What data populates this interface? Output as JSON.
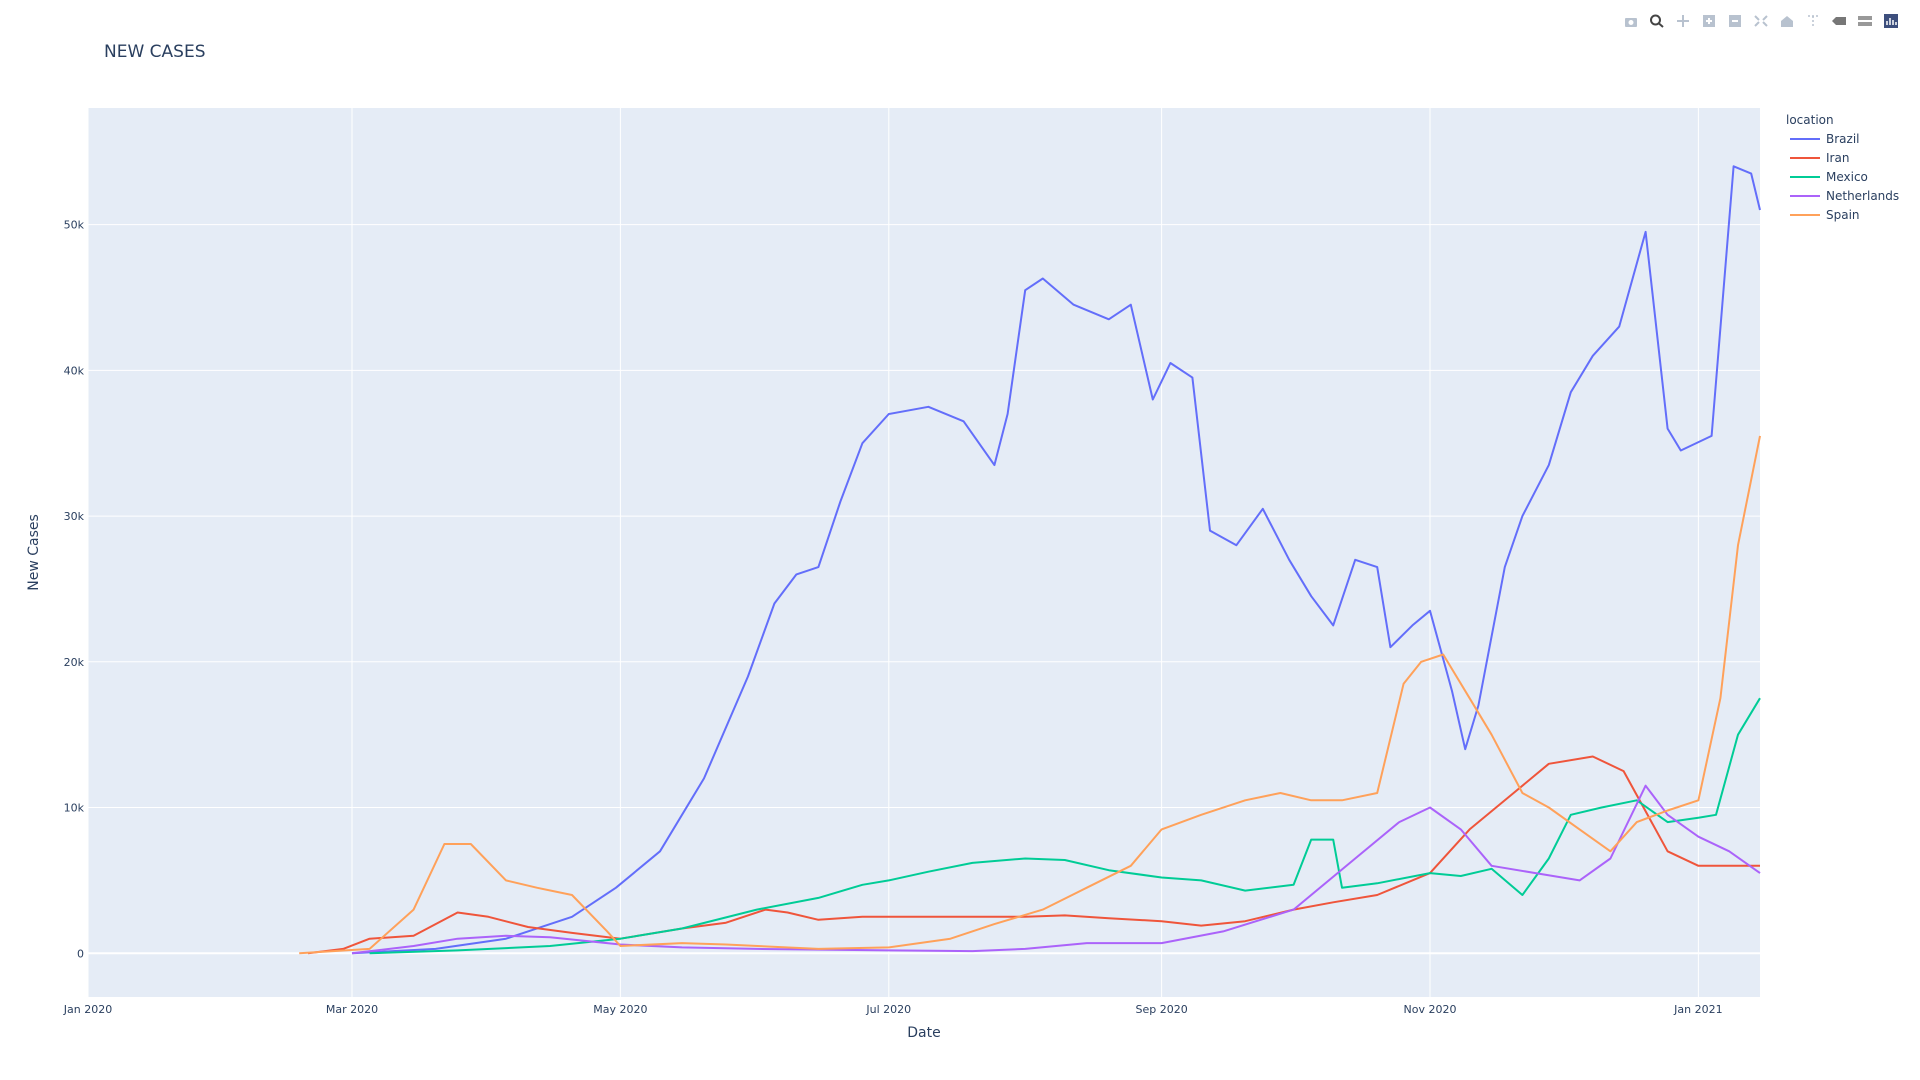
{
  "modebar": {
    "icons": [
      "camera-icon",
      "zoom-icon",
      "pan-icon",
      "zoom-in-icon",
      "zoom-out-icon",
      "autoscale-icon",
      "home-icon",
      "spike-lines-icon",
      "hover-closest-icon",
      "hover-compare-icon",
      "plotly-logo-icon"
    ]
  },
  "chart_data": {
    "type": "line",
    "title": "NEW CASES",
    "xlabel": "Date",
    "ylabel": "New Cases",
    "x_ticks": [
      "Jan 2020",
      "Mar 2020",
      "May 2020",
      "Jul 2020",
      "Sep 2020",
      "Nov 2020",
      "Jan 2021"
    ],
    "y_ticks": [
      "0",
      "10k",
      "20k",
      "30k",
      "40k",
      "50k"
    ],
    "xlim": [
      "2020-01-01",
      "2021-01-15"
    ],
    "ylim": [
      -3000,
      58000
    ],
    "grid": true,
    "legend_title": "location",
    "legend_position": "top-right",
    "colors": {
      "plot_bg": "#e5ecf6",
      "grid": "#ffffff"
    },
    "series": [
      {
        "name": "Brazil",
        "color": "#636efa",
        "points": [
          [
            "2020-03-01",
            0
          ],
          [
            "2020-03-20",
            300
          ],
          [
            "2020-04-05",
            1000
          ],
          [
            "2020-04-20",
            2500
          ],
          [
            "2020-04-30",
            4500
          ],
          [
            "2020-05-10",
            7000
          ],
          [
            "2020-05-20",
            12000
          ],
          [
            "2020-05-30",
            19000
          ],
          [
            "2020-06-05",
            24000
          ],
          [
            "2020-06-10",
            26000
          ],
          [
            "2020-06-15",
            26500
          ],
          [
            "2020-06-20",
            31000
          ],
          [
            "2020-06-25",
            35000
          ],
          [
            "2020-07-01",
            37000
          ],
          [
            "2020-07-10",
            37500
          ],
          [
            "2020-07-18",
            36500
          ],
          [
            "2020-07-25",
            33500
          ],
          [
            "2020-07-28",
            37000
          ],
          [
            "2020-08-01",
            45500
          ],
          [
            "2020-08-05",
            46300
          ],
          [
            "2020-08-12",
            44500
          ],
          [
            "2020-08-20",
            43500
          ],
          [
            "2020-08-25",
            44500
          ],
          [
            "2020-08-30",
            38000
          ],
          [
            "2020-09-03",
            40500
          ],
          [
            "2020-09-08",
            39500
          ],
          [
            "2020-09-12",
            29000
          ],
          [
            "2020-09-18",
            28000
          ],
          [
            "2020-09-24",
            30500
          ],
          [
            "2020-09-30",
            27000
          ],
          [
            "2020-10-05",
            24500
          ],
          [
            "2020-10-10",
            22500
          ],
          [
            "2020-10-15",
            27000
          ],
          [
            "2020-10-20",
            26500
          ],
          [
            "2020-10-23",
            21000
          ],
          [
            "2020-10-28",
            22500
          ],
          [
            "2020-11-01",
            23500
          ],
          [
            "2020-11-06",
            18000
          ],
          [
            "2020-11-09",
            14000
          ],
          [
            "2020-11-12",
            17000
          ],
          [
            "2020-11-18",
            26500
          ],
          [
            "2020-11-22",
            30000
          ],
          [
            "2020-11-28",
            33500
          ],
          [
            "2020-12-03",
            38500
          ],
          [
            "2020-12-08",
            41000
          ],
          [
            "2020-12-14",
            43000
          ],
          [
            "2020-12-20",
            49500
          ],
          [
            "2020-12-25",
            36000
          ],
          [
            "2020-12-28",
            34500
          ],
          [
            "2021-01-04",
            35500
          ],
          [
            "2021-01-09",
            54000
          ],
          [
            "2021-01-13",
            53500
          ],
          [
            "2021-01-15",
            51000
          ]
        ]
      },
      {
        "name": "Iran",
        "color": "#ef553b",
        "points": [
          [
            "2020-02-20",
            0
          ],
          [
            "2020-02-28",
            300
          ],
          [
            "2020-03-05",
            1000
          ],
          [
            "2020-03-15",
            1200
          ],
          [
            "2020-03-25",
            2800
          ],
          [
            "2020-04-01",
            2500
          ],
          [
            "2020-04-10",
            1800
          ],
          [
            "2020-04-20",
            1400
          ],
          [
            "2020-05-01",
            1000
          ],
          [
            "2020-05-15",
            1700
          ],
          [
            "2020-05-25",
            2100
          ],
          [
            "2020-06-03",
            3000
          ],
          [
            "2020-06-08",
            2800
          ],
          [
            "2020-06-15",
            2300
          ],
          [
            "2020-06-25",
            2500
          ],
          [
            "2020-07-15",
            2500
          ],
          [
            "2020-08-01",
            2500
          ],
          [
            "2020-08-10",
            2600
          ],
          [
            "2020-08-20",
            2400
          ],
          [
            "2020-09-01",
            2200
          ],
          [
            "2020-09-10",
            1900
          ],
          [
            "2020-09-20",
            2200
          ],
          [
            "2020-10-01",
            3000
          ],
          [
            "2020-10-10",
            3500
          ],
          [
            "2020-10-20",
            4000
          ],
          [
            "2020-11-01",
            5500
          ],
          [
            "2020-11-10",
            8500
          ],
          [
            "2020-11-20",
            11000
          ],
          [
            "2020-11-28",
            13000
          ],
          [
            "2020-12-08",
            13500
          ],
          [
            "2020-12-15",
            12500
          ],
          [
            "2020-12-25",
            7000
          ],
          [
            "2021-01-01",
            6000
          ],
          [
            "2021-01-15",
            6000
          ]
        ]
      },
      {
        "name": "Mexico",
        "color": "#00cc96",
        "points": [
          [
            "2020-03-05",
            0
          ],
          [
            "2020-03-25",
            200
          ],
          [
            "2020-04-15",
            500
          ],
          [
            "2020-05-01",
            1000
          ],
          [
            "2020-05-15",
            1700
          ],
          [
            "2020-06-01",
            3000
          ],
          [
            "2020-06-15",
            3800
          ],
          [
            "2020-06-25",
            4700
          ],
          [
            "2020-07-01",
            5000
          ],
          [
            "2020-07-10",
            5600
          ],
          [
            "2020-07-20",
            6200
          ],
          [
            "2020-08-01",
            6500
          ],
          [
            "2020-08-10",
            6400
          ],
          [
            "2020-08-20",
            5700
          ],
          [
            "2020-09-01",
            5200
          ],
          [
            "2020-09-10",
            5000
          ],
          [
            "2020-09-20",
            4300
          ],
          [
            "2020-10-01",
            4700
          ],
          [
            "2020-10-05",
            7800
          ],
          [
            "2020-10-10",
            7800
          ],
          [
            "2020-10-12",
            4500
          ],
          [
            "2020-10-20",
            4800
          ],
          [
            "2020-11-01",
            5500
          ],
          [
            "2020-11-08",
            5300
          ],
          [
            "2020-11-15",
            5800
          ],
          [
            "2020-11-22",
            4000
          ],
          [
            "2020-11-28",
            6500
          ],
          [
            "2020-12-03",
            9500
          ],
          [
            "2020-12-10",
            10000
          ],
          [
            "2020-12-18",
            10500
          ],
          [
            "2020-12-25",
            9000
          ],
          [
            "2021-01-01",
            9300
          ],
          [
            "2021-01-05",
            9500
          ],
          [
            "2021-01-10",
            15000
          ],
          [
            "2021-01-15",
            17500
          ]
        ]
      },
      {
        "name": "Netherlands",
        "color": "#ab63fa",
        "points": [
          [
            "2020-03-01",
            0
          ],
          [
            "2020-03-15",
            500
          ],
          [
            "2020-03-25",
            1000
          ],
          [
            "2020-04-05",
            1200
          ],
          [
            "2020-04-15",
            1100
          ],
          [
            "2020-05-01",
            600
          ],
          [
            "2020-05-15",
            400
          ],
          [
            "2020-06-01",
            300
          ],
          [
            "2020-07-01",
            200
          ],
          [
            "2020-07-20",
            150
          ],
          [
            "2020-08-01",
            300
          ],
          [
            "2020-08-15",
            700
          ],
          [
            "2020-09-01",
            700
          ],
          [
            "2020-09-15",
            1500
          ],
          [
            "2020-10-01",
            3000
          ],
          [
            "2020-10-15",
            6500
          ],
          [
            "2020-10-25",
            9000
          ],
          [
            "2020-11-01",
            10000
          ],
          [
            "2020-11-08",
            8500
          ],
          [
            "2020-11-15",
            6000
          ],
          [
            "2020-11-25",
            5500
          ],
          [
            "2020-12-05",
            5000
          ],
          [
            "2020-12-12",
            6500
          ],
          [
            "2020-12-20",
            11500
          ],
          [
            "2020-12-25",
            9500
          ],
          [
            "2021-01-01",
            8000
          ],
          [
            "2021-01-08",
            7000
          ],
          [
            "2021-01-15",
            5500
          ]
        ]
      },
      {
        "name": "Spain",
        "color": "#ffa15a",
        "points": [
          [
            "2020-02-18",
            0
          ],
          [
            "2020-03-05",
            300
          ],
          [
            "2020-03-15",
            3000
          ],
          [
            "2020-03-22",
            7500
          ],
          [
            "2020-03-28",
            7500
          ],
          [
            "2020-04-05",
            5000
          ],
          [
            "2020-04-12",
            4500
          ],
          [
            "2020-04-20",
            4000
          ],
          [
            "2020-04-28",
            1500
          ],
          [
            "2020-05-01",
            500
          ],
          [
            "2020-05-15",
            700
          ],
          [
            "2020-05-25",
            600
          ],
          [
            "2020-06-15",
            300
          ],
          [
            "2020-07-01",
            400
          ],
          [
            "2020-07-15",
            1000
          ],
          [
            "2020-07-25",
            2000
          ],
          [
            "2020-08-05",
            3000
          ],
          [
            "2020-08-15",
            4500
          ],
          [
            "2020-08-25",
            6000
          ],
          [
            "2020-09-01",
            8500
          ],
          [
            "2020-09-10",
            9500
          ],
          [
            "2020-09-20",
            10500
          ],
          [
            "2020-09-28",
            11000
          ],
          [
            "2020-10-05",
            10500
          ],
          [
            "2020-10-12",
            10500
          ],
          [
            "2020-10-20",
            11000
          ],
          [
            "2020-10-26",
            18500
          ],
          [
            "2020-10-30",
            20000
          ],
          [
            "2020-11-04",
            20500
          ],
          [
            "2020-11-10",
            17500
          ],
          [
            "2020-11-15",
            15000
          ],
          [
            "2020-11-22",
            11000
          ],
          [
            "2020-11-28",
            10000
          ],
          [
            "2020-12-05",
            8500
          ],
          [
            "2020-12-12",
            7000
          ],
          [
            "2020-12-18",
            9000
          ],
          [
            "2020-12-25",
            9800
          ],
          [
            "2021-01-01",
            10500
          ],
          [
            "2021-01-06",
            17500
          ],
          [
            "2021-01-10",
            28000
          ],
          [
            "2021-01-15",
            35500
          ]
        ]
      }
    ]
  }
}
